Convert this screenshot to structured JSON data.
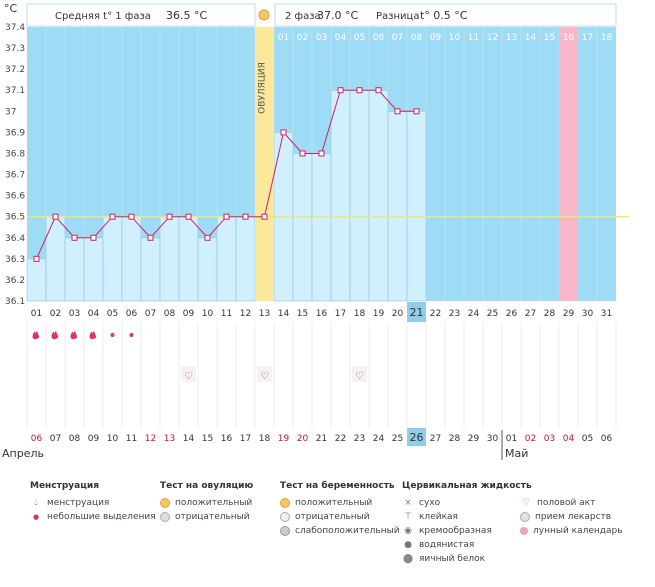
{
  "chart_data": {
    "type": "line",
    "unit": "°C",
    "ylim": [
      36.1,
      37.4
    ],
    "yticks": [
      "37.4",
      "37.3",
      "37.2",
      "37.1",
      "37",
      "36.9",
      "36.8",
      "36.7",
      "36.6",
      "36.5",
      "36.4",
      "36.3",
      "36.2",
      "36.1"
    ],
    "coverline": 36.5,
    "header": {
      "phase1": "Средняя t° 1 фаза",
      "phase1_value": "36.5 °C",
      "phase2": "2 фаза",
      "phase2_value": "37.0 °C",
      "diff": "Разница",
      "diff_value": "t° 0.5 °C"
    },
    "ovulation_label": "ОВУЛЯЦИЯ",
    "ovulation_index": 12,
    "top_numbers": [
      "01",
      "02",
      "03",
      "04",
      "05",
      "06",
      "07",
      "08",
      "09",
      "10",
      "11",
      "12",
      "13",
      "14",
      "15",
      "16",
      "17",
      "18"
    ],
    "top_highlight_index": 15,
    "cycle_days": [
      "01",
      "02",
      "03",
      "04",
      "05",
      "06",
      "07",
      "08",
      "09",
      "10",
      "11",
      "12",
      "13",
      "14",
      "15",
      "16",
      "17",
      "18",
      "19",
      "20",
      "21",
      "22",
      "23",
      "24",
      "25",
      "26",
      "27",
      "28",
      "29",
      "30",
      "31"
    ],
    "cycle_highlight_index": 20,
    "pink_index": 28,
    "temperatures": [
      36.3,
      36.5,
      36.4,
      36.4,
      36.5,
      36.5,
      36.4,
      36.5,
      36.5,
      36.4,
      36.5,
      36.5,
      36.5,
      36.9,
      36.8,
      36.8,
      37.1,
      37.1,
      37.1,
      37.0,
      37.0
    ],
    "dates": [
      "06",
      "07",
      "08",
      "09",
      "10",
      "11",
      "12",
      "13",
      "14",
      "15",
      "16",
      "17",
      "18",
      "19",
      "20",
      "21",
      "22",
      "23",
      "24",
      "25",
      "26",
      "27",
      "28",
      "29",
      "30",
      "01",
      "02",
      "03",
      "04",
      "05",
      "06"
    ],
    "date_red_indices": [
      0,
      6,
      7,
      13,
      14,
      26,
      27,
      28
    ],
    "date_highlight_index": 20,
    "month_start": "Апрель",
    "month_next": "Май",
    "month_next_index": 25,
    "menstruation_days": {
      "big": [
        0,
        1,
        2,
        3
      ],
      "small": [
        4,
        5
      ]
    },
    "sex_days": [
      8,
      12,
      17
    ]
  },
  "legend": {
    "menstruation": {
      "title": "Менструация",
      "items": [
        "менструация",
        "небольшие выделения"
      ]
    },
    "ovulation_test": {
      "title": "Тест на овуляцию",
      "items": [
        "положительный",
        "отрицательный"
      ]
    },
    "pregnancy_test": {
      "title": "Тест на беременность",
      "items": [
        "положительный",
        "отрицательный",
        "слабоположительный"
      ]
    },
    "cervical": {
      "title": "Цервикальная жидкость",
      "items": [
        "сухо",
        "клейкая",
        "кремообразная",
        "водянистая",
        "яичный белок"
      ]
    },
    "other": {
      "items": [
        "половой акт",
        "прием лекарств",
        "лунный календарь"
      ]
    }
  },
  "colors": {
    "bg": "#9edcf5",
    "bar": "#d0efff",
    "bar_edge": "#8ac5e4",
    "line": "#d02060",
    "ovulation": "#fbe89a",
    "pink": "#f8b7c8",
    "highlight": "#8fcdea",
    "red": "#cc1133",
    "coverline": "#eaea70"
  }
}
